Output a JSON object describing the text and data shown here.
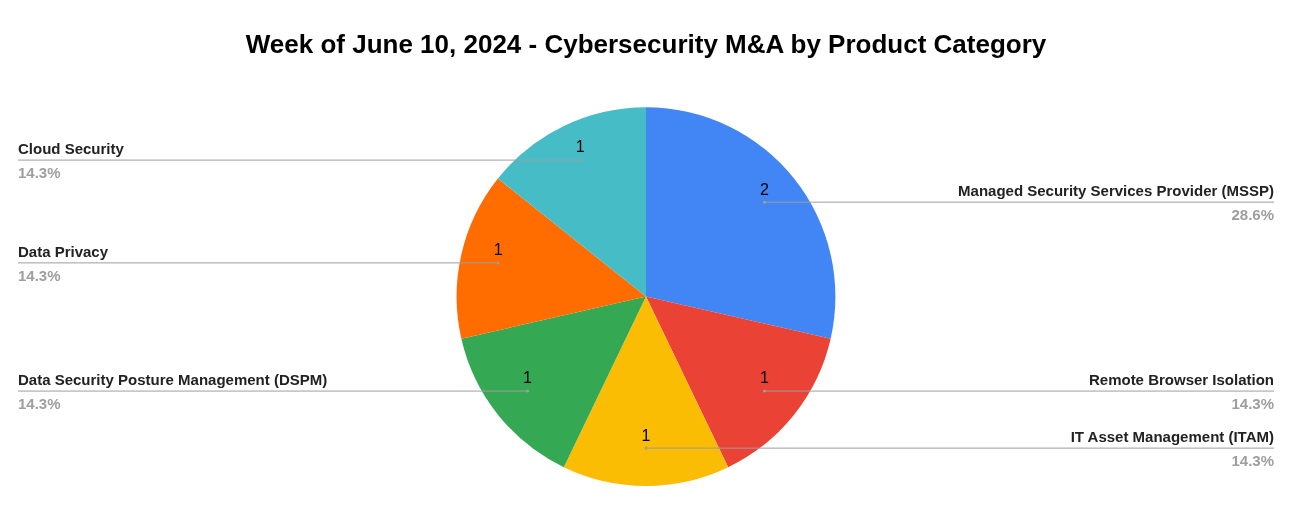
{
  "chart_data": {
    "type": "pie",
    "title": "Week of June 10, 2024 - Cybersecurity M&A by Product Category",
    "categories": [
      "Managed Security Services Provider (MSSP)",
      "Remote Browser Isolation",
      "IT Asset Management (ITAM)",
      "Data Security Posture Management (DSPM)",
      "Data Privacy",
      "Cloud Security"
    ],
    "values": [
      2,
      1,
      1,
      1,
      1,
      1
    ],
    "colors": [
      "#4285f4",
      "#ea4335",
      "#fbbc04",
      "#34a853",
      "#ff6d01",
      "#46bdc6"
    ],
    "annotations": [
      "28.6%",
      "14.3%",
      "14.3%",
      "14.3%",
      "14.3%",
      "14.3%"
    ],
    "data_labels": true,
    "legend": false
  }
}
